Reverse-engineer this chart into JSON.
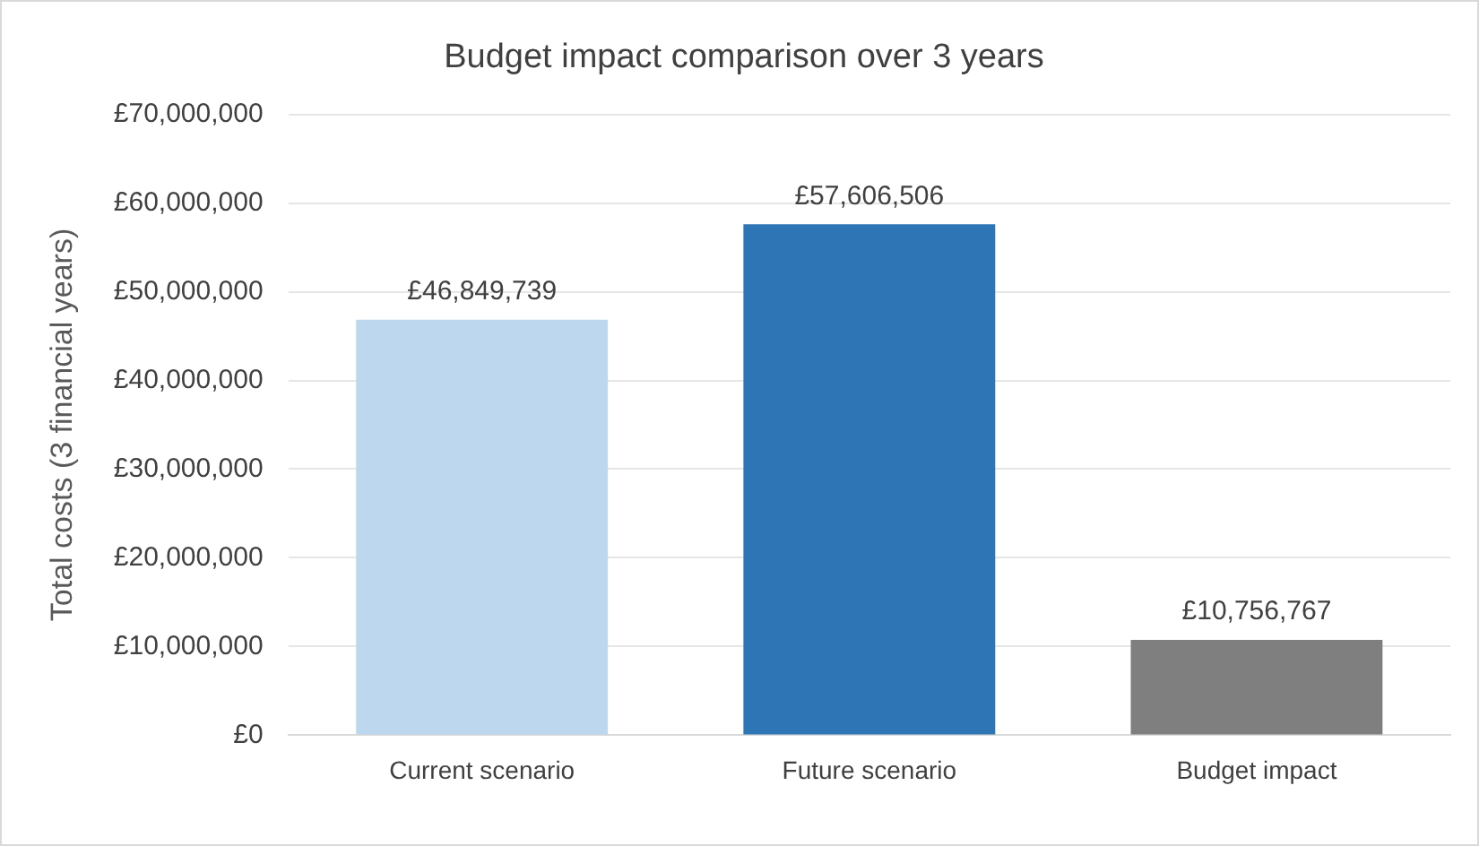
{
  "chart_data": {
    "type": "bar",
    "title": "Budget impact comparison over 3 years",
    "ylabel": "Total costs (3 financial years)",
    "categories": [
      "Current scenario",
      "Future scenario",
      "Budget impact"
    ],
    "values": [
      46849739,
      57606506,
      10756767
    ],
    "colors": [
      "#bdd7ee",
      "#2e75b6",
      "#7f7f7f"
    ],
    "value_labels": [
      "£46,849,739",
      "£57,606,506",
      "£10,756,767"
    ],
    "ylim": [
      0,
      70000000
    ],
    "yticks": [
      {
        "value": 0,
        "label": "£0"
      },
      {
        "value": 10000000,
        "label": "£10,000,000"
      },
      {
        "value": 20000000,
        "label": "£20,000,000"
      },
      {
        "value": 30000000,
        "label": "£30,000,000"
      },
      {
        "value": 40000000,
        "label": "£40,000,000"
      },
      {
        "value": 50000000,
        "label": "£50,000,000"
      },
      {
        "value": 60000000,
        "label": "£60,000,000"
      },
      {
        "value": 70000000,
        "label": "£70,000,000"
      }
    ],
    "grid": "y",
    "legend": false
  }
}
